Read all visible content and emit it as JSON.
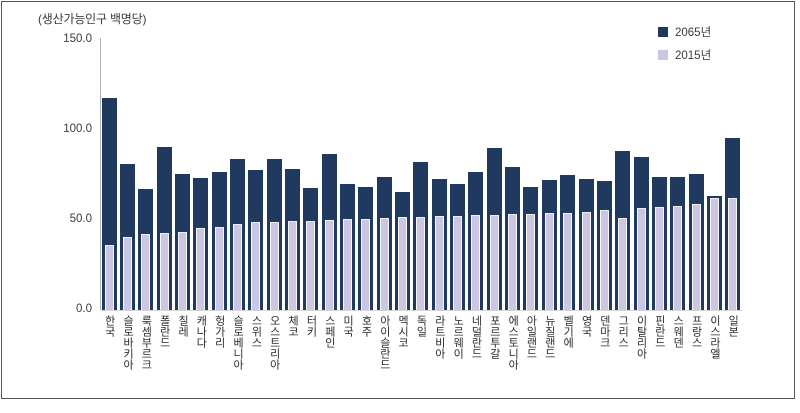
{
  "figure": {
    "unit_label": "(생산가능인구 백명당)"
  },
  "chart_data": {
    "type": "bar",
    "title": "",
    "xlabel": "",
    "ylabel": "(생산가능인구 백명당)",
    "ylim": [
      0,
      150
    ],
    "yticks": [
      0,
      50,
      100,
      150
    ],
    "ytick_labels": [
      "0.0",
      "50.0",
      "100.0",
      "150.0"
    ],
    "grid": false,
    "legend_position": "top-right",
    "bar_style": "overlaid (2065 wide bar behind, 2015 narrow bar in front)",
    "categories": [
      "한국",
      "슬로바키아",
      "룩셈부르크",
      "폴란드",
      "칠레",
      "캐나다",
      "헝가리",
      "슬로베니아",
      "스위스",
      "오스트리아",
      "체코",
      "터키",
      "스페인",
      "미국",
      "호주",
      "아이슬란드",
      "멕시코",
      "독일",
      "라트비아",
      "노르웨이",
      "네덜란드",
      "포르투갈",
      "에스토니아",
      "아일랜드",
      "뉴질랜드",
      "벨기에",
      "영국",
      "덴마크",
      "그리스",
      "이탈리아",
      "핀란드",
      "스웨덴",
      "프랑스",
      "이스라엘",
      "일본"
    ],
    "series": [
      {
        "name": "2065년",
        "color": "#20395f",
        "values": [
          117.8,
          80.9,
          67.3,
          90.5,
          75.4,
          73.1,
          76.5,
          83.9,
          77.6,
          83.9,
          78.5,
          67.8,
          86.8,
          69.8,
          68.3,
          73.9,
          65.6,
          82.0,
          73.0,
          69.8,
          76.9,
          89.8,
          79.3,
          68.5,
          72.0,
          75.0,
          73.0,
          71.5,
          88.1,
          84.8,
          73.9,
          73.7,
          75.6,
          63.3,
          95.6
        ]
      },
      {
        "name": "2015년",
        "color": "#cbc7e3",
        "values": [
          36.2,
          40.4,
          42.0,
          42.6,
          43.5,
          45.7,
          45.9,
          47.8,
          48.8,
          49.0,
          49.3,
          49.7,
          50.1,
          50.4,
          50.8,
          51.1,
          51.5,
          51.8,
          52.1,
          52.4,
          52.7,
          53.0,
          53.3,
          53.6,
          53.9,
          54.1,
          54.3,
          55.4,
          51.3,
          56.5,
          57.2,
          57.8,
          58.7,
          62.4,
          62.0
        ]
      }
    ]
  }
}
